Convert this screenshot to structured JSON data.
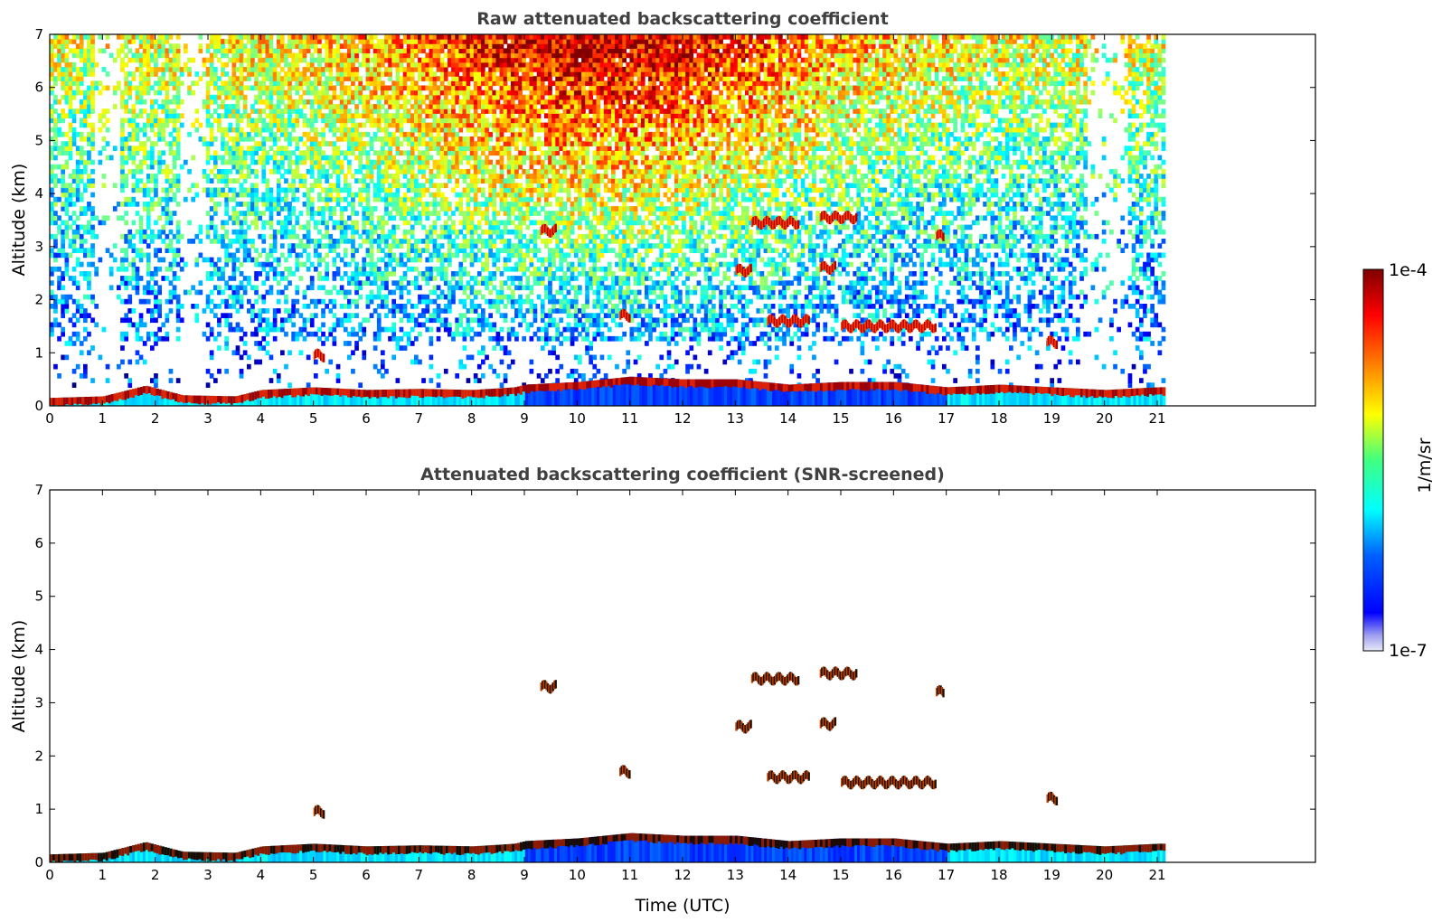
{
  "chart_data": [
    {
      "type": "heatmap",
      "title": "Raw attenuated backscattering coefficient",
      "xlabel": "",
      "ylabel": "Altitude (km)",
      "xlim": [
        0,
        24
      ],
      "ylim": [
        0,
        7
      ],
      "xticks": [
        "0",
        "1",
        "2",
        "3",
        "4",
        "5",
        "6",
        "7",
        "8",
        "9",
        "10",
        "11",
        "12",
        "13",
        "14",
        "15",
        "16",
        "17",
        "18",
        "19",
        "20",
        "21"
      ],
      "yticks": [
        "0",
        "1",
        "2",
        "3",
        "4",
        "5",
        "6",
        "7"
      ],
      "data_end_hour": 21.15,
      "boundary_layer_height_km": [
        [
          0,
          0.15
        ],
        [
          1,
          0.18
        ],
        [
          1.8,
          0.38
        ],
        [
          2.5,
          0.2
        ],
        [
          3.5,
          0.18
        ],
        [
          4,
          0.3
        ],
        [
          5,
          0.35
        ],
        [
          6,
          0.3
        ],
        [
          7,
          0.32
        ],
        [
          8,
          0.3
        ],
        [
          8.8,
          0.35
        ],
        [
          9,
          0.4
        ],
        [
          10,
          0.45
        ],
        [
          11,
          0.55
        ],
        [
          12,
          0.5
        ],
        [
          13,
          0.5
        ],
        [
          14,
          0.4
        ],
        [
          15,
          0.45
        ],
        [
          16,
          0.45
        ],
        [
          17,
          0.35
        ],
        [
          18,
          0.4
        ],
        [
          19,
          0.35
        ],
        [
          20,
          0.3
        ],
        [
          21,
          0.35
        ]
      ],
      "cloud_features": [
        {
          "t0": 13.3,
          "t1": 14.2,
          "z": 3.45
        },
        {
          "t0": 14.6,
          "t1": 15.3,
          "z": 3.55
        },
        {
          "t0": 13.0,
          "t1": 13.3,
          "z": 2.55
        },
        {
          "t0": 14.6,
          "t1": 14.9,
          "z": 2.6
        },
        {
          "t0": 13.6,
          "t1": 14.4,
          "z": 1.6
        },
        {
          "t0": 15.0,
          "t1": 16.8,
          "z": 1.5
        },
        {
          "t0": 9.3,
          "t1": 9.6,
          "z": 3.3
        },
        {
          "t0": 10.8,
          "t1": 11.0,
          "z": 1.7
        },
        {
          "t0": 16.8,
          "t1": 16.95,
          "z": 3.2
        },
        {
          "t0": 18.9,
          "t1": 19.1,
          "z": 1.2
        },
        {
          "t0": 5.0,
          "t1": 5.2,
          "z": 0.95
        }
      ]
    },
    {
      "type": "heatmap",
      "title": "Attenuated backscattering coefficient (SNR-screened)",
      "xlabel": "Time (UTC)",
      "ylabel": "Altitude (km)",
      "xlim": [
        0,
        24
      ],
      "ylim": [
        0,
        7
      ],
      "xticks": [
        "0",
        "1",
        "2",
        "3",
        "4",
        "5",
        "6",
        "7",
        "8",
        "9",
        "10",
        "11",
        "12",
        "13",
        "14",
        "15",
        "16",
        "17",
        "18",
        "19",
        "20",
        "21"
      ],
      "yticks": [
        "0",
        "1",
        "2",
        "3",
        "4",
        "5",
        "6",
        "7"
      ],
      "data_end_hour": 21.15
    }
  ],
  "colorbar": {
    "label": "1/m/sr",
    "max_label": "1e-4",
    "min_label": "1e-7",
    "min_value": 1e-07,
    "max_value": 0.0001,
    "scale": "log",
    "colormap": "jet"
  }
}
